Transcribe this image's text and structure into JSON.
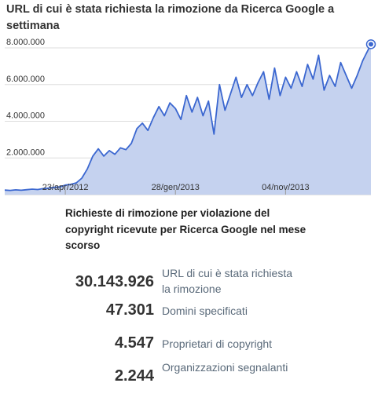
{
  "chart_data": {
    "type": "area",
    "title": "URL di cui è stata richiesta la rimozione da Ricerca Google a settimana",
    "xlabel": "",
    "ylabel": "",
    "x_tick_labels": [
      "23/apr/2012",
      "28/gen/2013",
      "04/nov/2013"
    ],
    "x_tick_weeks": [
      22,
      62,
      102
    ],
    "y_ticks": [
      2000000,
      4000000,
      6000000,
      8000000
    ],
    "y_tick_labels": [
      "2.000.000",
      "4.000.000",
      "6.000.000",
      "8.000.000"
    ],
    "ylim": [
      0,
      8900000
    ],
    "grid": true,
    "x_unit": "settimana",
    "x": [
      0,
      2,
      4,
      6,
      8,
      10,
      12,
      14,
      16,
      18,
      20,
      22,
      24,
      26,
      28,
      30,
      32,
      34,
      36,
      38,
      40,
      42,
      44,
      46,
      48,
      50,
      52,
      54,
      56,
      58,
      60,
      62,
      64,
      66,
      68,
      70,
      72,
      74,
      76,
      78,
      80,
      82,
      84,
      86,
      88,
      90,
      92,
      94,
      96,
      98,
      100,
      102,
      104,
      106,
      108,
      110,
      112,
      114,
      116,
      118,
      120,
      122,
      124,
      126,
      128,
      130,
      132,
      133
    ],
    "values": [
      250000,
      230000,
      260000,
      240000,
      270000,
      300000,
      280000,
      330000,
      360000,
      400000,
      420000,
      520000,
      560000,
      640000,
      900000,
      1400000,
      2100000,
      2500000,
      2100000,
      2400000,
      2200000,
      2550000,
      2450000,
      2800000,
      3600000,
      3900000,
      3500000,
      4200000,
      4800000,
      4300000,
      5000000,
      4700000,
      4100000,
      5400000,
      4500000,
      5300000,
      4300000,
      5100000,
      3300000,
      6000000,
      4600000,
      5500000,
      6400000,
      5300000,
      6000000,
      5400000,
      6100000,
      6700000,
      5200000,
      6900000,
      5400000,
      6400000,
      5800000,
      6700000,
      5900000,
      7100000,
      6300000,
      7600000,
      5700000,
      6500000,
      5900000,
      7200000,
      6500000,
      5800000,
      6500000,
      7300000,
      7900000,
      8200000
    ],
    "highlight_last_point": true,
    "colors": {
      "line": "#3b67d0",
      "fill": "#c5d2ef",
      "grid": "#dddddd",
      "tick_label": "#333333"
    }
  },
  "stats": {
    "heading": "Richieste di rimozione per violazione del copyright ricevute per Ricerca Google nel mese scorso",
    "items": [
      {
        "value": "30.143.926",
        "label": "URL di cui è stata richiesta la rimozione"
      },
      {
        "value": "47.301",
        "label": "Domini specificati"
      },
      {
        "value": "4.547",
        "label": "Proprietari di copyright"
      },
      {
        "value": "2.244",
        "label": "Organizzazioni segnalanti"
      }
    ]
  }
}
